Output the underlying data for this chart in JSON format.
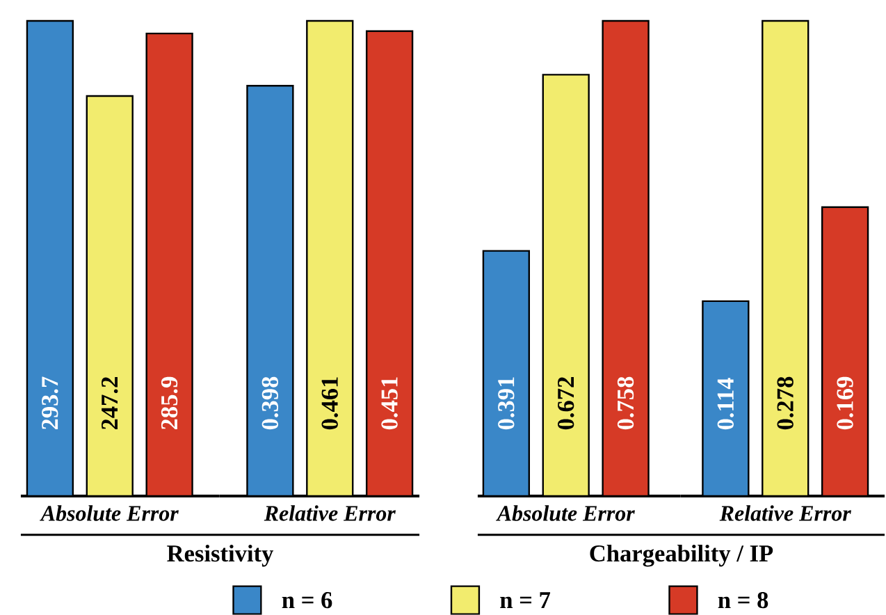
{
  "chart_data": [
    {
      "type": "bar",
      "categories": [
        "Absolute Error"
      ],
      "xlabel": "Resistivity",
      "data_labels": true,
      "legend": "bottom",
      "series": [
        {
          "name": "n = 6",
          "color": "#3a87c8",
          "values": [
            293.7
          ]
        },
        {
          "name": "n = 7",
          "color": "#f2ec6e",
          "values": [
            247.2
          ]
        },
        {
          "name": "n = 8",
          "color": "#d63a26",
          "values": [
            285.9
          ]
        }
      ]
    },
    {
      "type": "bar",
      "categories": [
        "Relative Error"
      ],
      "data_labels": true,
      "series": [
        {
          "color": "#3a87c8",
          "values": [
            0.398
          ]
        },
        {
          "color": "#f2ec6e",
          "values": [
            0.461
          ]
        },
        {
          "color": "#d63a26",
          "values": [
            0.451
          ]
        }
      ]
    },
    {
      "type": "bar",
      "categories": [
        "Absolute Error"
      ],
      "xlabel": "Chargeability / IP",
      "data_labels": true,
      "series": [
        {
          "color": "#3a87c8",
          "values": [
            0.391
          ]
        },
        {
          "color": "#f2ec6e",
          "values": [
            0.672
          ]
        },
        {
          "color": "#d63a26",
          "values": [
            0.758
          ]
        }
      ]
    },
    {
      "type": "bar",
      "categories": [
        "Relative Error"
      ],
      "data_labels": true,
      "series": [
        {
          "color": "#3a87c8",
          "values": [
            0.114
          ]
        },
        {
          "color": "#f2ec6e",
          "values": [
            0.278
          ]
        },
        {
          "color": "#d63a26",
          "values": [
            0.169
          ]
        }
      ]
    }
  ]
}
